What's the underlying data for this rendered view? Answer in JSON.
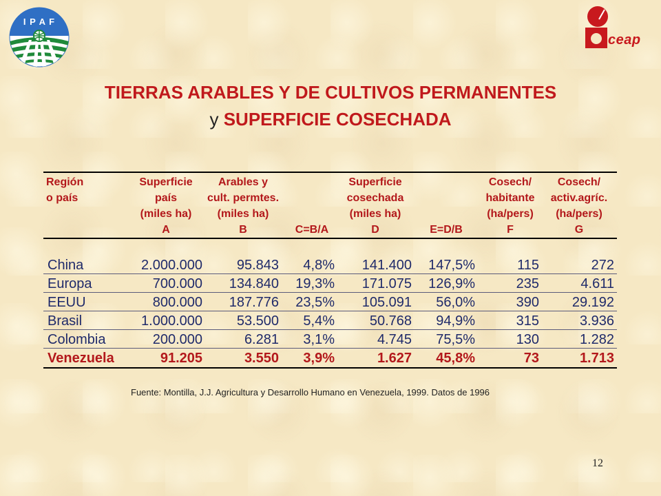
{
  "logos": {
    "ipaf_text": "I P A F",
    "ceap_text": "ceap"
  },
  "title": {
    "line1": "TIERRAS ARABLES Y DE CULTIVOS PERMANENTES",
    "line2_prefix": "y",
    "line2_main": "SUPERFICIE COSECHADA"
  },
  "table": {
    "headers": [
      {
        "l1": "Región",
        "l2": "o país",
        "l3": "",
        "l4": ""
      },
      {
        "l1": "Superficie",
        "l2": "país",
        "l3": "(miles ha)",
        "l4": "A"
      },
      {
        "l1": "Arables y",
        "l2": "cult. permtes.",
        "l3": "(miles ha)",
        "l4": "B"
      },
      {
        "l1": "",
        "l2": "",
        "l3": "",
        "l4": "C=B/A"
      },
      {
        "l1": "Superficie",
        "l2": "cosechada",
        "l3": "(miles ha)",
        "l4": "D"
      },
      {
        "l1": "",
        "l2": "",
        "l3": "",
        "l4": "E=D/B"
      },
      {
        "l1": "Cosech/",
        "l2": "habitante",
        "l3": "(ha/pers)",
        "l4": "F"
      },
      {
        "l1": "Cosech/",
        "l2": "activ.agríc.",
        "l3": "(ha/pers)",
        "l4": "G"
      }
    ],
    "rows": [
      {
        "region": "China",
        "a": "2.000.000",
        "b": "95.843",
        "c": "4,8%",
        "d": "141.400",
        "e": "147,5%",
        "f": "115",
        "g": "272"
      },
      {
        "region": "Europa",
        "a": "700.000",
        "b": "134.840",
        "c": "19,3%",
        "d": "171.075",
        "e": "126,9%",
        "f": "235",
        "g": "4.611"
      },
      {
        "region": "EEUU",
        "a": "800.000",
        "b": "187.776",
        "c": "23,5%",
        "d": "105.091",
        "e": "56,0%",
        "f": "390",
        "g": "29.192"
      },
      {
        "region": "Brasil",
        "a": "1.000.000",
        "b": "53.500",
        "c": "5,4%",
        "d": "50.768",
        "e": "94,9%",
        "f": "315",
        "g": "3.936"
      },
      {
        "region": "Colombia",
        "a": "200.000",
        "b": "6.281",
        "c": "3,1%",
        "d": "4.745",
        "e": "75,5%",
        "f": "130",
        "g": "1.282"
      },
      {
        "region": "Venezuela",
        "a": "91.205",
        "b": "3.550",
        "c": "3,9%",
        "d": "1.627",
        "e": "45,8%",
        "f": "73",
        "g": "1.713"
      }
    ]
  },
  "source": "Fuente: Montilla, J.J. Agricultura y Desarrollo Humano en Venezuela, 1999. Datos de 1996",
  "page_number": "12",
  "colors": {
    "title": "#c0191c",
    "header": "#b3181b",
    "body_text": "#1f2a6a",
    "highlight": "#b3181b",
    "background": "#f6e8c4",
    "ipaf_blue": "#2f6fc4",
    "ipaf_green": "#1f8a3a",
    "ceap_red": "#c8191e"
  }
}
